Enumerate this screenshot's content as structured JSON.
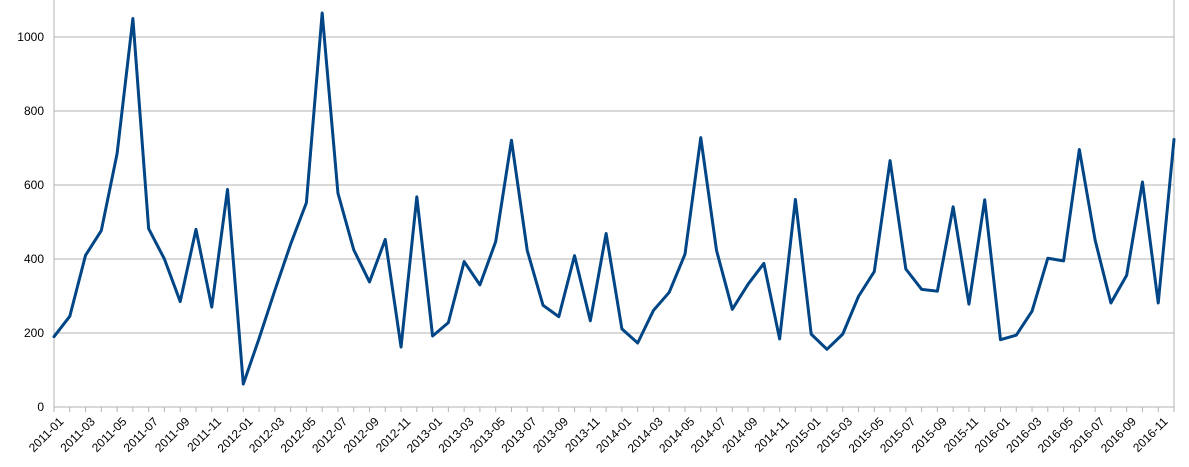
{
  "chart_data": {
    "type": "line",
    "title": "",
    "xlabel": "",
    "ylabel": "",
    "ylim": [
      0,
      1100
    ],
    "yticks": [
      0,
      200,
      400,
      600,
      800,
      1000
    ],
    "grid": true,
    "legend": "none",
    "categories": [
      "2011-01",
      "2011-02",
      "2011-03",
      "2011-04",
      "2011-05",
      "2011-06",
      "2011-07",
      "2011-08",
      "2011-09",
      "2011-10",
      "2011-11",
      "2011-12",
      "2012-01",
      "2012-02",
      "2012-03",
      "2012-04",
      "2012-05",
      "2012-06",
      "2012-07",
      "2012-08",
      "2012-09",
      "2012-10",
      "2012-11",
      "2012-12",
      "2013-01",
      "2013-02",
      "2013-03",
      "2013-04",
      "2013-05",
      "2013-06",
      "2013-07",
      "2013-08",
      "2013-09",
      "2013-10",
      "2013-11",
      "2013-12",
      "2014-01",
      "2014-02",
      "2014-03",
      "2014-04",
      "2014-05",
      "2014-06",
      "2014-07",
      "2014-08",
      "2014-09",
      "2014-10",
      "2014-11",
      "2014-12",
      "2015-01",
      "2015-02",
      "2015-03",
      "2015-04",
      "2015-05",
      "2015-06",
      "2015-07",
      "2015-08",
      "2015-09",
      "2015-10",
      "2015-11",
      "2015-12",
      "2016-01",
      "2016-02",
      "2016-03",
      "2016-04",
      "2016-05",
      "2016-06",
      "2016-07",
      "2016-08",
      "2016-09",
      "2016-10",
      "2016-11",
      "2016-12"
    ],
    "x_tick_labels": [
      "2011-01",
      "2011-03",
      "2011-05",
      "2011-07",
      "2011-09",
      "2011-11",
      "2012-01",
      "2012-03",
      "2012-05",
      "2012-07",
      "2012-09",
      "2012-11",
      "2013-01",
      "2013-03",
      "2013-05",
      "2013-07",
      "2013-09",
      "2013-11",
      "2014-01",
      "2014-03",
      "2014-05",
      "2014-07",
      "2014-09",
      "2014-11",
      "2015-01",
      "2015-03",
      "2015-05",
      "2015-07",
      "2015-09",
      "2015-11",
      "2016-01",
      "2016-03",
      "2016-05",
      "2016-07",
      "2016-09",
      "2016-11"
    ],
    "series": [
      {
        "color": "#004586",
        "values": [
          190,
          245,
          410,
          477,
          685,
          1050,
          482,
          400,
          285,
          480,
          270,
          588,
          62,
          185,
          315,
          440,
          552,
          1065,
          578,
          425,
          338,
          453,
          162,
          568,
          192,
          228,
          393,
          330,
          447,
          721,
          423,
          275,
          244,
          409,
          233,
          469,
          211,
          173,
          261,
          310,
          413,
          728,
          423,
          264,
          332,
          388,
          184,
          561,
          197,
          156,
          197,
          299,
          366,
          666,
          373,
          318,
          313,
          541,
          278,
          560,
          182,
          194,
          259,
          402,
          395,
          696,
          451,
          281,
          356,
          608,
          281,
          723
        ]
      }
    ]
  }
}
